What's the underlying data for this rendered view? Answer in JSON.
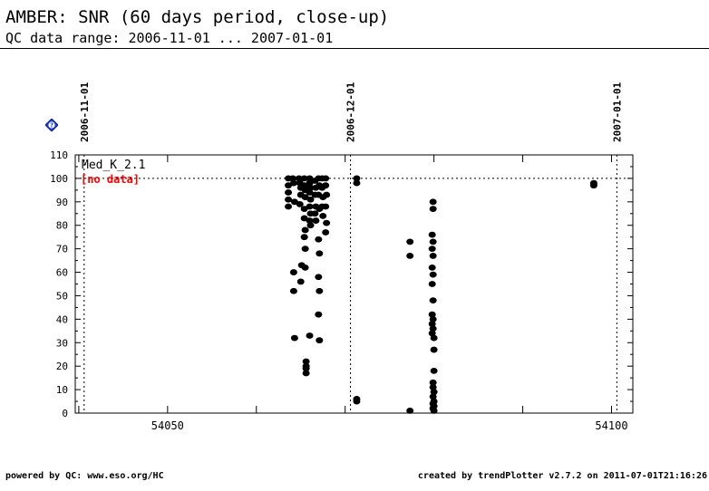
{
  "header": {
    "title": "AMBER: SNR (60 days period, close-up)",
    "subtitle": "QC data range: 2006-11-01 ... 2007-01-01"
  },
  "footer": {
    "left": "powered by QC: www.eso.org/HC",
    "right": "created by trendPlotter v2.7.2 on 2011-07-01T21:16:26"
  },
  "help_icon": {
    "icon": "help-diamond-icon",
    "glyph": "?",
    "color": "#1f3fd6"
  },
  "chart_data": {
    "type": "scatter",
    "xlim": [
      54039.6,
      54102.4
    ],
    "ylim": [
      0,
      110
    ],
    "x_ticks": [
      54050,
      54100
    ],
    "y_ticks": [
      0,
      10,
      20,
      30,
      40,
      50,
      60,
      70,
      80,
      90,
      100,
      110
    ],
    "reference_line": 100,
    "date_markers": [
      {
        "label": "2006-11-01",
        "x": 54040.6
      },
      {
        "label": "2006-12-01",
        "x": 54070.6
      },
      {
        "label": "2007-01-01",
        "x": 54100.6
      }
    ],
    "panel_label": "Med_K_2.1",
    "no_data_label": "[no data]",
    "no_data_color": "#ff0000",
    "grid": false,
    "series": [
      {
        "name": "Med_K_2.1",
        "points": [
          [
            54063.6,
            100
          ],
          [
            54063.6,
            97
          ],
          [
            54063.6,
            94
          ],
          [
            54063.6,
            91
          ],
          [
            54063.6,
            88
          ],
          [
            54064.1,
            100
          ],
          [
            54064.2,
            98
          ],
          [
            54064.3,
            90
          ],
          [
            54064.2,
            60
          ],
          [
            54064.2,
            52
          ],
          [
            54064.3,
            32
          ],
          [
            54064.8,
            100
          ],
          [
            54064.9,
            98
          ],
          [
            54065.0,
            96
          ],
          [
            54065.0,
            93
          ],
          [
            54064.9,
            89
          ],
          [
            54065.0,
            56
          ],
          [
            54065.1,
            63
          ],
          [
            54065.4,
            100
          ],
          [
            54065.4,
            97
          ],
          [
            54065.5,
            95
          ],
          [
            54065.5,
            92
          ],
          [
            54065.4,
            87
          ],
          [
            54065.4,
            83
          ],
          [
            54065.5,
            78
          ],
          [
            54065.4,
            75
          ],
          [
            54065.5,
            70
          ],
          [
            54065.5,
            62
          ],
          [
            54065.6,
            22
          ],
          [
            54065.6,
            20
          ],
          [
            54065.6,
            19
          ],
          [
            54065.6,
            17
          ],
          [
            54066.0,
            100
          ],
          [
            54066.0,
            98
          ],
          [
            54066.1,
            96
          ],
          [
            54066.0,
            94
          ],
          [
            54066.1,
            91
          ],
          [
            54066.0,
            88
          ],
          [
            54066.1,
            85
          ],
          [
            54066.0,
            82
          ],
          [
            54066.1,
            80
          ],
          [
            54066.0,
            33
          ],
          [
            54066.6,
            99
          ],
          [
            54066.7,
            96
          ],
          [
            54066.6,
            93
          ],
          [
            54066.7,
            88
          ],
          [
            54066.6,
            85
          ],
          [
            54066.7,
            82
          ],
          [
            54067.0,
            100
          ],
          [
            54067.1,
            97
          ],
          [
            54067.0,
            93
          ],
          [
            54067.1,
            87
          ],
          [
            54067.0,
            74
          ],
          [
            54067.1,
            68
          ],
          [
            54067.0,
            58
          ],
          [
            54067.1,
            52
          ],
          [
            54067.0,
            42
          ],
          [
            54067.1,
            31
          ],
          [
            54067.4,
            100
          ],
          [
            54067.4,
            96
          ],
          [
            54067.5,
            92
          ],
          [
            54067.4,
            88
          ],
          [
            54067.5,
            84
          ],
          [
            54067.8,
            100
          ],
          [
            54067.8,
            97
          ],
          [
            54067.9,
            93
          ],
          [
            54067.8,
            88
          ],
          [
            54067.9,
            81
          ],
          [
            54067.8,
            77
          ],
          [
            54071.3,
            100
          ],
          [
            54071.3,
            98
          ],
          [
            54071.3,
            6
          ],
          [
            54071.3,
            5
          ],
          [
            54077.3,
            73
          ],
          [
            54077.3,
            67
          ],
          [
            54077.3,
            1
          ],
          [
            54079.9,
            90
          ],
          [
            54079.9,
            87
          ],
          [
            54079.8,
            76
          ],
          [
            54079.9,
            73
          ],
          [
            54079.8,
            70
          ],
          [
            54079.9,
            67
          ],
          [
            54079.8,
            62
          ],
          [
            54079.9,
            59
          ],
          [
            54079.8,
            55
          ],
          [
            54079.9,
            48
          ],
          [
            54079.8,
            42
          ],
          [
            54079.9,
            40
          ],
          [
            54079.8,
            38
          ],
          [
            54079.9,
            36
          ],
          [
            54079.8,
            34
          ],
          [
            54080.0,
            32
          ],
          [
            54080.0,
            27
          ],
          [
            54080.0,
            18
          ],
          [
            54079.9,
            13
          ],
          [
            54079.9,
            11
          ],
          [
            54080.0,
            9
          ],
          [
            54079.9,
            7
          ],
          [
            54080.0,
            5
          ],
          [
            54079.9,
            4
          ],
          [
            54080.0,
            3
          ],
          [
            54079.9,
            2
          ],
          [
            54080.0,
            1
          ],
          [
            54098.0,
            98
          ],
          [
            54098.0,
            97
          ]
        ]
      }
    ]
  }
}
